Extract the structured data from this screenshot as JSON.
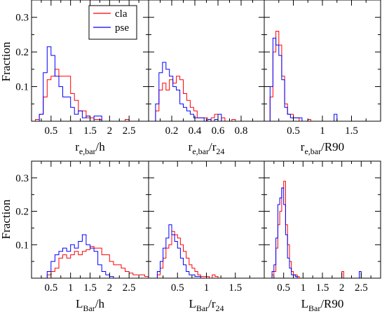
{
  "colors": {
    "cla": "#ff0000",
    "pse": "#0000ff",
    "axis": "#000000"
  },
  "legend": {
    "position": "top-left of first panel",
    "items": [
      {
        "label": "cla",
        "color": "#ff0000"
      },
      {
        "label": "pse",
        "color": "#0000ff"
      }
    ]
  },
  "ylabel": "Fraction",
  "chart_data": [
    {
      "type": "histogram-step",
      "xlabel": {
        "main": "r",
        "sub": "e,bar",
        "rest": "/h"
      },
      "xlim": [
        0,
        3
      ],
      "ylim": [
        0,
        0.35
      ],
      "xticks": [
        "0.5",
        "1",
        "1.5",
        "2",
        "2.5"
      ],
      "xtick_values": [
        0.5,
        1,
        1.5,
        2,
        2.5
      ],
      "yticks": [
        "0.1",
        "0.2",
        "0.3"
      ],
      "ytick_values": [
        0.1,
        0.2,
        0.3
      ],
      "bin_edges": [
        0.1,
        0.2,
        0.3,
        0.4,
        0.5,
        0.6,
        0.7,
        0.8,
        0.9,
        1.0,
        1.1,
        1.2,
        1.3,
        1.4,
        1.5,
        1.6,
        1.7,
        1.8,
        1.9,
        2.0,
        2.1,
        2.2,
        2.3,
        2.4,
        2.5
      ],
      "series": [
        {
          "name": "cla",
          "values": [
            0.005,
            0.02,
            0.07,
            0.12,
            0.13,
            0.15,
            0.13,
            0.13,
            0.13,
            0.08,
            0.06,
            0.03,
            0.03,
            0.01,
            0.01,
            0.005,
            0.005,
            0,
            0,
            0,
            0,
            0,
            0,
            0.005
          ]
        },
        {
          "name": "pse",
          "values": [
            0,
            0.02,
            0.14,
            0.215,
            0.19,
            0.13,
            0.1,
            0.07,
            0.07,
            0.04,
            0.02,
            0.03,
            0.01,
            0.015,
            0,
            0.015,
            0.015,
            0,
            0,
            0,
            0,
            0,
            0,
            0
          ]
        }
      ]
    },
    {
      "type": "histogram-step",
      "xlabel": {
        "main": "r",
        "sub": "e,bar",
        "rest": "/r",
        "sub2": "24"
      },
      "xlim": [
        0,
        1.0
      ],
      "ylim": [
        0,
        0.35
      ],
      "xticks": [
        "0.2",
        "0.4",
        "0.6",
        "0.8"
      ],
      "xtick_values": [
        0.2,
        0.4,
        0.6,
        0.8
      ],
      "yticks": [],
      "ytick_values": [
        0.1,
        0.2,
        0.3
      ],
      "bin_edges": [
        0.06,
        0.09,
        0.12,
        0.15,
        0.18,
        0.21,
        0.24,
        0.27,
        0.3,
        0.33,
        0.36,
        0.39,
        0.42,
        0.45,
        0.48,
        0.51,
        0.54,
        0.57,
        0.6,
        0.63,
        0.66,
        0.69,
        0.72,
        0.75
      ],
      "series": [
        {
          "name": "cla",
          "values": [
            0.03,
            0.09,
            0.11,
            0.09,
            0.12,
            0.11,
            0.13,
            0.12,
            0.08,
            0.06,
            0.04,
            0.03,
            0.01,
            0.01,
            0.01,
            0,
            0.01,
            0.02,
            0,
            0.01,
            0,
            0,
            0.005
          ]
        },
        {
          "name": "pse",
          "values": [
            0.05,
            0.14,
            0.17,
            0.15,
            0.13,
            0.1,
            0.09,
            0.05,
            0.04,
            0.03,
            0.02,
            0.01,
            0.01,
            0.01,
            0,
            0.005,
            0,
            0.005,
            0.02,
            0,
            0,
            0,
            0
          ]
        }
      ]
    },
    {
      "type": "histogram-step",
      "xlabel": {
        "main": "r",
        "sub": "e,bar",
        "rest": "/R90"
      },
      "xlim": [
        0,
        2.0
      ],
      "ylim": [
        0,
        0.35
      ],
      "xticks": [
        "0.5",
        "1",
        "1.5"
      ],
      "xtick_values": [
        0.5,
        1,
        1.5
      ],
      "yticks": [],
      "ytick_values": [
        0.1,
        0.2,
        0.3
      ],
      "bin_edges": [
        0.1,
        0.15,
        0.2,
        0.25,
        0.3,
        0.35,
        0.4,
        0.45,
        0.5,
        0.55,
        0.6,
        0.65,
        0.7,
        0.75,
        0.8,
        0.85,
        0.9,
        0.95,
        1.0,
        1.05,
        1.1,
        1.15,
        1.2,
        1.25,
        1.3
      ],
      "series": [
        {
          "name": "cla",
          "values": [
            0.07,
            0.2,
            0.26,
            0.22,
            0.13,
            0.05,
            0.02,
            0.02,
            0.01,
            0.01,
            0,
            0,
            0,
            0.005,
            0,
            0,
            0,
            0,
            0,
            0,
            0,
            0,
            0,
            0
          ]
        },
        {
          "name": "pse",
          "values": [
            0.1,
            0.24,
            0.22,
            0.19,
            0.12,
            0.04,
            0.02,
            0.01,
            0.01,
            0.01,
            0.01,
            0,
            0,
            0,
            0,
            0,
            0,
            0,
            0,
            0,
            0,
            0,
            0.02,
            0
          ]
        }
      ]
    },
    {
      "type": "histogram-step",
      "xlabel": {
        "main": "L",
        "sub": "Bar",
        "rest": "/h"
      },
      "xlim": [
        0,
        3
      ],
      "ylim": [
        0,
        0.35
      ],
      "xticks": [
        "0.5",
        "1",
        "1.5",
        "2",
        "2.5"
      ],
      "xtick_values": [
        0.5,
        1,
        1.5,
        2,
        2.5
      ],
      "yticks": [
        "0.1",
        "0.2",
        "0.3"
      ],
      "ytick_values": [
        0.1,
        0.2,
        0.3
      ],
      "bin_edges": [
        0.4,
        0.5,
        0.6,
        0.7,
        0.8,
        0.9,
        1.0,
        1.1,
        1.2,
        1.3,
        1.4,
        1.5,
        1.6,
        1.7,
        1.8,
        1.9,
        2.0,
        2.1,
        2.2,
        2.3,
        2.4,
        2.5,
        2.6,
        2.7,
        2.8,
        2.9,
        3.0
      ],
      "series": [
        {
          "name": "cla",
          "values": [
            0.01,
            0.02,
            0.03,
            0.06,
            0.07,
            0.06,
            0.07,
            0.08,
            0.07,
            0.08,
            0.085,
            0.095,
            0.09,
            0.09,
            0.07,
            0.07,
            0.05,
            0.04,
            0.04,
            0.03,
            0.02,
            0.015,
            0.01,
            0.01,
            0.01,
            0.005
          ]
        },
        {
          "name": "pse",
          "values": [
            0.02,
            0.05,
            0.07,
            0.08,
            0.09,
            0.08,
            0.1,
            0.09,
            0.11,
            0.13,
            0.1,
            0.09,
            0.08,
            0.04,
            0.02,
            0.01,
            0.005,
            0,
            0,
            0,
            0,
            0,
            0,
            0,
            0,
            0
          ]
        }
      ]
    },
    {
      "type": "histogram-step",
      "xlabel": {
        "main": "L",
        "sub": "Bar",
        "rest": "/r",
        "sub2": "24"
      },
      "xlim": [
        0,
        2.0
      ],
      "ylim": [
        0,
        0.35
      ],
      "xticks": [
        "0.5",
        "1",
        "1.5"
      ],
      "xtick_values": [
        0.5,
        1,
        1.5
      ],
      "yticks": [],
      "ytick_values": [
        0.1,
        0.2,
        0.3
      ],
      "bin_edges": [
        0.15,
        0.2,
        0.25,
        0.3,
        0.35,
        0.4,
        0.45,
        0.5,
        0.55,
        0.6,
        0.65,
        0.7,
        0.75,
        0.8,
        0.85,
        0.9,
        0.95,
        1.0,
        1.05,
        1.1,
        1.15,
        1.2,
        1.25,
        1.3
      ],
      "series": [
        {
          "name": "cla",
          "values": [
            0.01,
            0.03,
            0.06,
            0.09,
            0.1,
            0.14,
            0.13,
            0.12,
            0.1,
            0.08,
            0.06,
            0.04,
            0.03,
            0.02,
            0.01,
            0.005,
            0.005,
            0.005,
            0,
            0.01,
            0.005,
            0,
            0
          ]
        },
        {
          "name": "pse",
          "values": [
            0.02,
            0.05,
            0.09,
            0.12,
            0.16,
            0.13,
            0.11,
            0.09,
            0.06,
            0.04,
            0.02,
            0.01,
            0.01,
            0.005,
            0.005,
            0,
            0,
            0,
            0,
            0,
            0,
            0,
            0
          ]
        }
      ]
    },
    {
      "type": "histogram-step",
      "xlabel": {
        "main": "L",
        "sub": "Bar",
        "rest": "/R90"
      },
      "xlim": [
        0,
        3
      ],
      "ylim": [
        0,
        0.35
      ],
      "xticks": [
        "0.5",
        "1",
        "1.5",
        "2",
        "2.5"
      ],
      "xtick_values": [
        0.5,
        1,
        1.5,
        2,
        2.5
      ],
      "yticks": [],
      "ytick_values": [
        0.1,
        0.2,
        0.3
      ],
      "bin_edges": [
        0.2,
        0.25,
        0.3,
        0.35,
        0.4,
        0.45,
        0.5,
        0.55,
        0.6,
        0.65,
        0.7,
        0.75,
        0.8,
        0.85,
        0.9,
        0.95,
        1.0,
        1.05,
        1.1,
        1.15,
        1.2,
        1.25,
        1.3,
        1.35,
        1.4,
        1.45,
        1.5,
        1.55,
        1.6,
        1.65,
        1.7,
        1.75,
        1.8,
        1.85,
        1.9,
        1.95,
        2.0,
        2.05,
        2.1,
        2.15,
        2.2,
        2.25,
        2.3,
        2.35,
        2.4,
        2.45,
        2.5,
        2.55,
        2.6
      ],
      "series": [
        {
          "name": "cla",
          "values": [
            0.01,
            0.02,
            0.09,
            0.16,
            0.2,
            0.27,
            0.29,
            0.16,
            0.1,
            0.05,
            0.02,
            0.01,
            0.01,
            0.005,
            0,
            0,
            0,
            0,
            0,
            0,
            0,
            0,
            0,
            0,
            0,
            0,
            0,
            0,
            0,
            0,
            0,
            0,
            0,
            0,
            0,
            0,
            0.02,
            0,
            0,
            0,
            0,
            0,
            0,
            0,
            0,
            0,
            0,
            0
          ]
        },
        {
          "name": "pse",
          "values": [
            0.02,
            0.04,
            0.12,
            0.22,
            0.24,
            0.27,
            0.22,
            0.13,
            0.06,
            0.03,
            0.01,
            0.01,
            0.005,
            0,
            0,
            0,
            0,
            0,
            0,
            0,
            0,
            0,
            0,
            0,
            0,
            0,
            0,
            0,
            0,
            0,
            0,
            0,
            0,
            0,
            0,
            0,
            0,
            0,
            0,
            0,
            0,
            0,
            0,
            0,
            0,
            0.02,
            0,
            0
          ]
        }
      ]
    }
  ]
}
